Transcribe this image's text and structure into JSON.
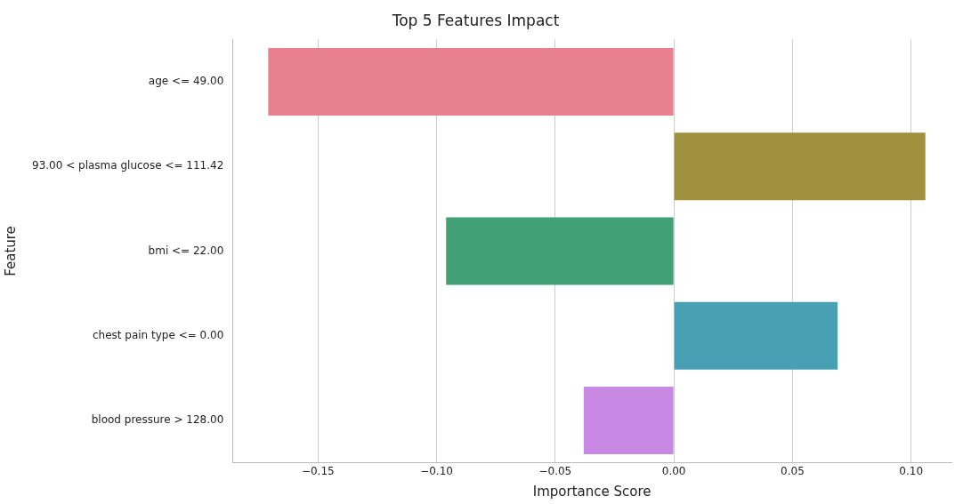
{
  "chart_data": {
    "type": "bar",
    "orientation": "horizontal",
    "title": "Top 5 Features Impact",
    "xlabel": "Importance Score",
    "ylabel": "Feature",
    "categories": [
      "age <= 49.00",
      "93.00 < plasma glucose <= 111.42",
      "bmi <= 22.00",
      "chest pain type <= 0.00",
      "blood pressure > 128.00"
    ],
    "values": [
      -0.171,
      0.106,
      -0.096,
      0.069,
      -0.038
    ],
    "colors": [
      "#e8808f",
      "#9f913e",
      "#42a076",
      "#48a0b4",
      "#c888e4"
    ],
    "xlim": [
      -0.186,
      0.117
    ],
    "xticks": [
      {
        "value": -0.15,
        "label": "−0.15"
      },
      {
        "value": -0.1,
        "label": "−0.10"
      },
      {
        "value": -0.05,
        "label": "−0.05"
      },
      {
        "value": 0,
        "label": "0.00"
      },
      {
        "value": 0.05,
        "label": "0.05"
      },
      {
        "value": 0.1,
        "label": "0.10"
      }
    ],
    "grid": "x",
    "legend": false
  }
}
